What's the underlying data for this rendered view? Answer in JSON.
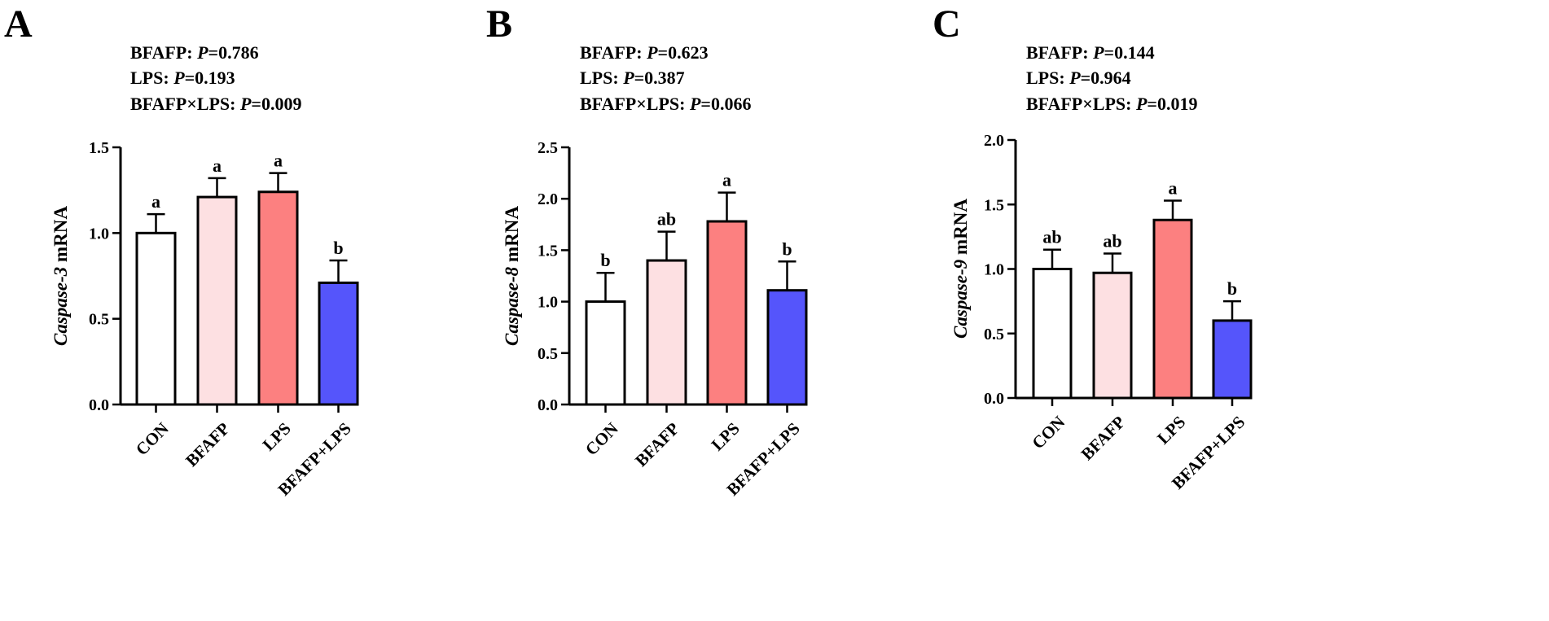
{
  "chart_data": [
    {
      "panel": "A",
      "type": "bar",
      "stats": [
        {
          "term": "BFAFP",
          "p_label": "P",
          "p_value": "=0.786"
        },
        {
          "term": "LPS",
          "p_label": "P",
          "p_value": "=0.193"
        },
        {
          "term": "BFAFP×LPS",
          "p_label": "P",
          "p_value": "=0.009"
        }
      ],
      "ylabel_italic": "Caspase-3",
      "ylabel_rest": " mRNA",
      "ylim": [
        0,
        1.5
      ],
      "yticks": [
        "0.0",
        "0.5",
        "1.0",
        "1.5"
      ],
      "categories": [
        "CON",
        "BFAFP",
        "LPS",
        "BFAFP+LPS"
      ],
      "values": [
        1.0,
        1.21,
        1.24,
        0.71
      ],
      "errors": [
        0.11,
        0.11,
        0.11,
        0.13
      ],
      "letters": [
        "a",
        "a",
        "a",
        "b"
      ]
    },
    {
      "panel": "B",
      "type": "bar",
      "stats": [
        {
          "term": "BFAFP",
          "p_label": "P",
          "p_value": "=0.623"
        },
        {
          "term": "LPS",
          "p_label": "P",
          "p_value": "=0.387"
        },
        {
          "term": "BFAFP×LPS",
          "p_label": "P",
          "p_value": "=0.066"
        }
      ],
      "ylabel_italic": "Caspase-8",
      "ylabel_rest": " mRNA",
      "ylim": [
        0,
        2.5
      ],
      "yticks": [
        "0.0",
        "0.5",
        "1.0",
        "1.5",
        "2.0",
        "2.5"
      ],
      "categories": [
        "CON",
        "BFAFP",
        "LPS",
        "BFAFP+LPS"
      ],
      "values": [
        1.0,
        1.4,
        1.78,
        1.11
      ],
      "errors": [
        0.28,
        0.28,
        0.28,
        0.28
      ],
      "letters": [
        "b",
        "ab",
        "a",
        "b"
      ]
    },
    {
      "panel": "C",
      "type": "bar",
      "stats": [
        {
          "term": "BFAFP",
          "p_label": "P",
          "p_value": "=0.144"
        },
        {
          "term": "LPS",
          "p_label": "P",
          "p_value": "=0.964"
        },
        {
          "term": "BFAFP×LPS",
          "p_label": "P",
          "p_value": "=0.019"
        }
      ],
      "ylabel_italic": "Caspase-9",
      "ylabel_rest": " mRNA",
      "ylim": [
        0,
        2.0
      ],
      "yticks": [
        "0.0",
        "0.5",
        "1.0",
        "1.5",
        "2.0"
      ],
      "categories": [
        "CON",
        "BFAFP",
        "LPS",
        "BFAFP+LPS"
      ],
      "values": [
        1.0,
        0.97,
        1.38,
        0.6
      ],
      "errors": [
        0.15,
        0.15,
        0.15,
        0.15
      ],
      "letters": [
        "ab",
        "ab",
        "a",
        "b"
      ]
    }
  ],
  "bar_colors": [
    "#ffffff",
    "#fde0e2",
    "#fc8080",
    "#5555fb"
  ],
  "axis_color": "#000000"
}
